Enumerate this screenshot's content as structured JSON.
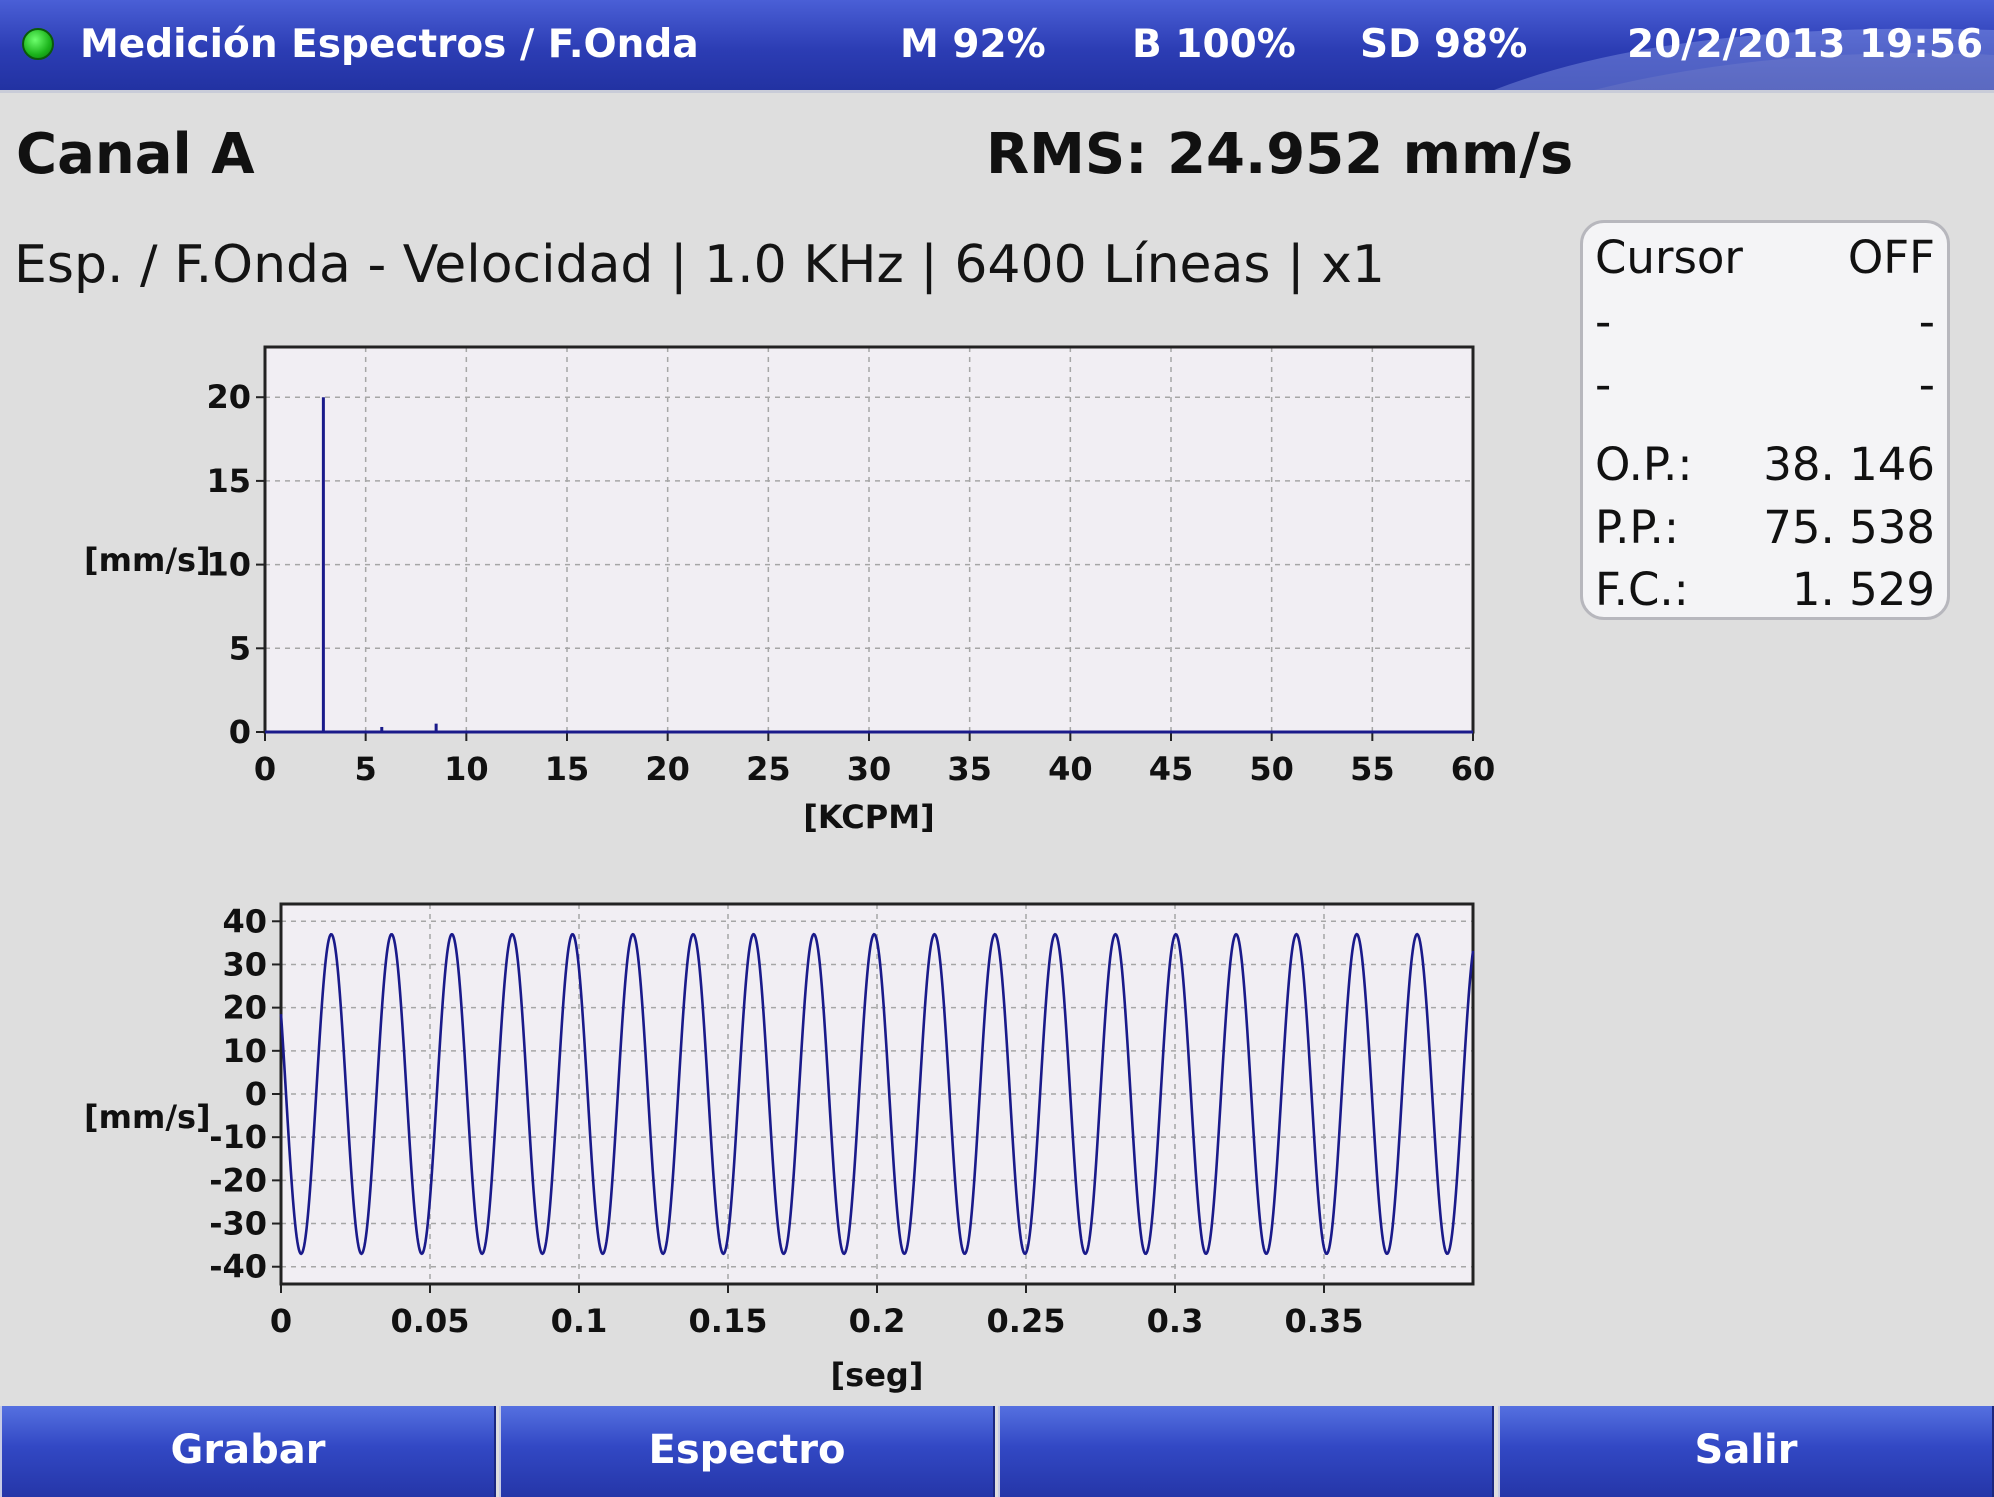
{
  "titlebar": {
    "title": "Medición Espectros / F.Onda",
    "memory": "M 92%",
    "battery": "B 100%",
    "sd": "SD 98%",
    "datetime": "20/2/2013 19:56",
    "status_color": "#22c022"
  },
  "header": {
    "channel": "Canal A",
    "rms": "RMS: 24.952 mm/s",
    "subtitle": "Esp. / F.Onda - Velocidad | 1.0 KHz | 6400 Líneas | x1"
  },
  "cursor_panel": {
    "cursor_label": "Cursor",
    "cursor_state": "OFF",
    "rows": [
      {
        "label": "-",
        "value": "-"
      },
      {
        "label": "-",
        "value": "-"
      },
      {
        "label": "O.P.:",
        "value": "38. 146"
      },
      {
        "label": "P.P.:",
        "value": "75. 538"
      },
      {
        "label": "F.C.:",
        "value": "1. 529"
      }
    ]
  },
  "chart_data": [
    {
      "type": "bar",
      "ylabel": "[mm/s]",
      "xlabel": "[KCPM]",
      "xlim": [
        0,
        60
      ],
      "ylim": [
        0,
        23
      ],
      "x_ticks": [
        "0",
        "5",
        "10",
        "15",
        "20",
        "25",
        "30",
        "35",
        "40",
        "45",
        "50",
        "55",
        "60"
      ],
      "y_ticks": [
        "0",
        "5",
        "10",
        "15",
        "20"
      ],
      "grid": true,
      "line_color": "#1a1a8a",
      "points": [
        {
          "x": 2.9,
          "y": 20.0
        },
        {
          "x": 5.8,
          "y": 0.3
        },
        {
          "x": 8.5,
          "y": 0.5
        }
      ]
    },
    {
      "type": "line",
      "ylabel": "[mm/s]",
      "xlabel": "[seg]",
      "xlim": [
        0,
        0.4
      ],
      "ylim": [
        -44,
        44
      ],
      "x_ticks": [
        "0",
        "0.05",
        "0.1",
        "0.15",
        "0.2",
        "0.25",
        "0.3",
        "0.35"
      ],
      "y_ticks": [
        "40",
        "30",
        "20",
        "10",
        "0",
        "-10",
        "-20",
        "-30",
        "-40"
      ],
      "grid": true,
      "line_color": "#1a1a8a",
      "amplitude": 37,
      "frequency_hz": 49.4,
      "phase_deg": 150
    }
  ],
  "buttons": {
    "grabar": "Grabar",
    "espectro": "Espectro",
    "empty": "",
    "salir": "Salir"
  }
}
